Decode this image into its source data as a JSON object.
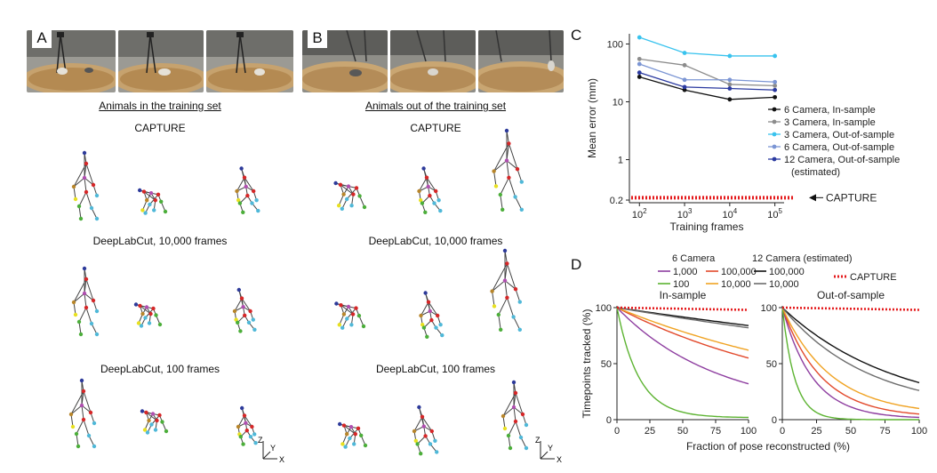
{
  "panel_a": {
    "letter": "A",
    "caption": "Animals in the training set",
    "rows": [
      "CAPTURE",
      "DeepLabCut, 10,000 frames",
      "DeepLabCut, 100 frames"
    ]
  },
  "panel_b": {
    "letter": "B",
    "caption": "Animals out of the training set",
    "rows": [
      "CAPTURE",
      "DeepLabCut, 10,000 frames",
      "DeepLabCut, 100 frames"
    ]
  },
  "axes_glyph": {
    "z": "Z",
    "y": "Y",
    "x": "X"
  },
  "colors": {
    "skeleton": "#444444",
    "head": "#2d3a9a",
    "trunk": "#d62728",
    "left_arm": "#b8862b",
    "right_arm": "#e8e020",
    "left_leg": "#4cae3a",
    "right_leg": "#4fb8d8",
    "spine_mid": "#b04fb0"
  },
  "chart_data": [
    {
      "panel": "C",
      "type": "line",
      "xlabel": "Training frames",
      "ylabel": "Mean error (mm)",
      "x_scale": "log",
      "y_scale": "log",
      "x": [
        100,
        1000,
        10000,
        100000
      ],
      "x_ticks": [
        "10^2",
        "10^3",
        "10^4",
        "10^5"
      ],
      "y_ticks": [
        "100",
        "10",
        "1",
        "0.2"
      ],
      "ylim": [
        0.18,
        150
      ],
      "series": [
        {
          "name": "6 Camera, In-sample",
          "color": "#111111",
          "values": [
            27,
            16,
            11,
            12
          ]
        },
        {
          "name": "3 Camera, In-sample",
          "color": "#8c8c8c",
          "values": [
            55,
            43,
            20,
            19
          ]
        },
        {
          "name": "3 Camera, Out-of-sample",
          "color": "#39c3ee",
          "values": [
            130,
            70,
            62,
            62
          ]
        },
        {
          "name": "6 Camera, Out-of-sample",
          "color": "#7b95d4",
          "values": [
            45,
            24,
            24,
            22
          ]
        },
        {
          "name": "12 Camera, Out-of-sample",
          "name2": "(estimated)",
          "color": "#2b3aa0",
          "values": [
            32,
            18,
            17,
            16
          ]
        }
      ],
      "reference": {
        "name": "CAPTURE",
        "value": 0.22,
        "color": "#e41a1c"
      },
      "legend": "right"
    },
    {
      "panel": "D",
      "type": "line",
      "xlabel": "Fraction of pose  reconstructed (%)",
      "ylabel": "Timepoints tracked (%)",
      "x_ticks": [
        0,
        25,
        50,
        75,
        100
      ],
      "y_ticks": [
        0,
        50,
        100
      ],
      "xlim": [
        0,
        100
      ],
      "ylim": [
        0,
        100
      ],
      "legend_groups": [
        {
          "title": "6 Camera",
          "items": [
            "1,000",
            "100,000",
            "100",
            "10,000"
          ]
        },
        {
          "title": "12 Camera (estimated)",
          "items": [
            "100,000",
            "10,000"
          ]
        }
      ],
      "legend_ref": "CAPTURE",
      "subplots": [
        {
          "title": "In-sample",
          "series": [
            {
              "name": "6 Camera 1,000",
              "color": "#8e3ea0",
              "end": 32,
              "k": 0.013
            },
            {
              "name": "6 Camera 100,000",
              "color": "#e2492b",
              "end": 55,
              "k": 0.0065
            },
            {
              "name": "6 Camera 100",
              "color": "#5cb331",
              "end": 2,
              "k": 0.06
            },
            {
              "name": "6 Camera 10,000",
              "color": "#f0a323",
              "end": 62,
              "k": 0.0052
            },
            {
              "name": "12 Camera 100,000",
              "color": "#111111",
              "end": 84,
              "k": 0.0018
            },
            {
              "name": "12 Camera 10,000",
              "color": "#6d6d6d",
              "end": 82,
              "k": 0.002
            },
            {
              "name": "CAPTURE",
              "color": "#e41a1c",
              "end": 98,
              "dotted": true
            }
          ]
        },
        {
          "title": "Out-of-sample",
          "series": [
            {
              "name": "6 Camera 1,000",
              "color": "#8e3ea0",
              "end": 2,
              "k": 0.045
            },
            {
              "name": "6 Camera 100,000",
              "color": "#e2492b",
              "end": 5,
              "k": 0.035
            },
            {
              "name": "6 Camera 100",
              "color": "#5cb331",
              "end": 0,
              "k": 0.11
            },
            {
              "name": "6 Camera 10,000",
              "color": "#f0a323",
              "end": 10,
              "k": 0.028
            },
            {
              "name": "12 Camera 100,000",
              "color": "#111111",
              "end": 33,
              "k": 0.012
            },
            {
              "name": "12 Camera 10,000",
              "color": "#6d6d6d",
              "end": 26,
              "k": 0.016
            },
            {
              "name": "CAPTURE",
              "color": "#e41a1c",
              "end": 98,
              "dotted": true
            }
          ]
        }
      ]
    }
  ]
}
